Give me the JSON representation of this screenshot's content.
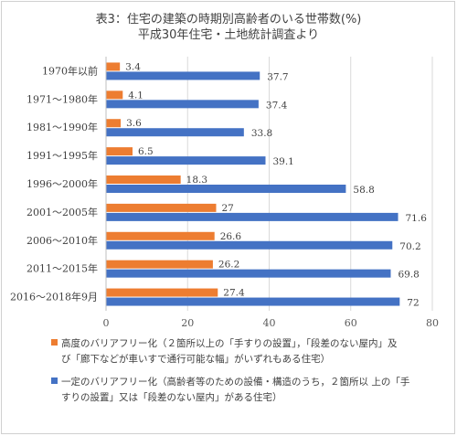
{
  "title_line1": "表3：住宅の建築の時期別高齢者のいる世帯数(%)",
  "title_line2": "平成30年住宅・土地統計調査より",
  "colors": {
    "orange": "#ED7D31",
    "blue": "#4472C4",
    "grid": "#d9d9d9",
    "axis": "#bfbfbf"
  },
  "chart_data": {
    "type": "bar",
    "orientation": "horizontal",
    "categories": [
      "1970年以前",
      "1971～1980年",
      "1981～1990年",
      "1991～1995年",
      "1996～2000年",
      "2001～2005年",
      "2006～2010年",
      "2011～2015年",
      "2016～2018年9月"
    ],
    "series": [
      {
        "name": "高度のバリアフリー化（２箇所以上の「手すりの設置」，「段差のない屋内」及び「廊下などが車いすで通行可能な幅」がいずれもある住宅）",
        "values": [
          3.4,
          4.1,
          3.6,
          6.5,
          18.3,
          27,
          26.6,
          26.2,
          27.4
        ]
      },
      {
        "name": "一定のバリアフリー化（高齢者等のための設備・構造のうち，２箇所以 上の「手すりの設置」又は「段差のない屋内」がある住宅）",
        "values": [
          37.7,
          37.4,
          33.8,
          39.1,
          58.8,
          71.6,
          70.2,
          69.8,
          72
        ]
      }
    ],
    "xlim": [
      0,
      80
    ],
    "xticks": [
      0,
      20,
      40,
      60,
      80
    ],
    "grid": true,
    "legend_position": "bottom"
  },
  "legend_text": [
    "高度のバリアフリー化（２箇所以上の「手すりの設置」，「段差のない屋内」及",
    "び「廊下などが車いすで通行可能な幅」がいずれもある住宅）",
    "一定のバリアフリー化（高齢者等のための設備・構造のうち，２箇所以 上の「手",
    "すりの設置」又は「段差のない屋内」がある住宅）"
  ]
}
